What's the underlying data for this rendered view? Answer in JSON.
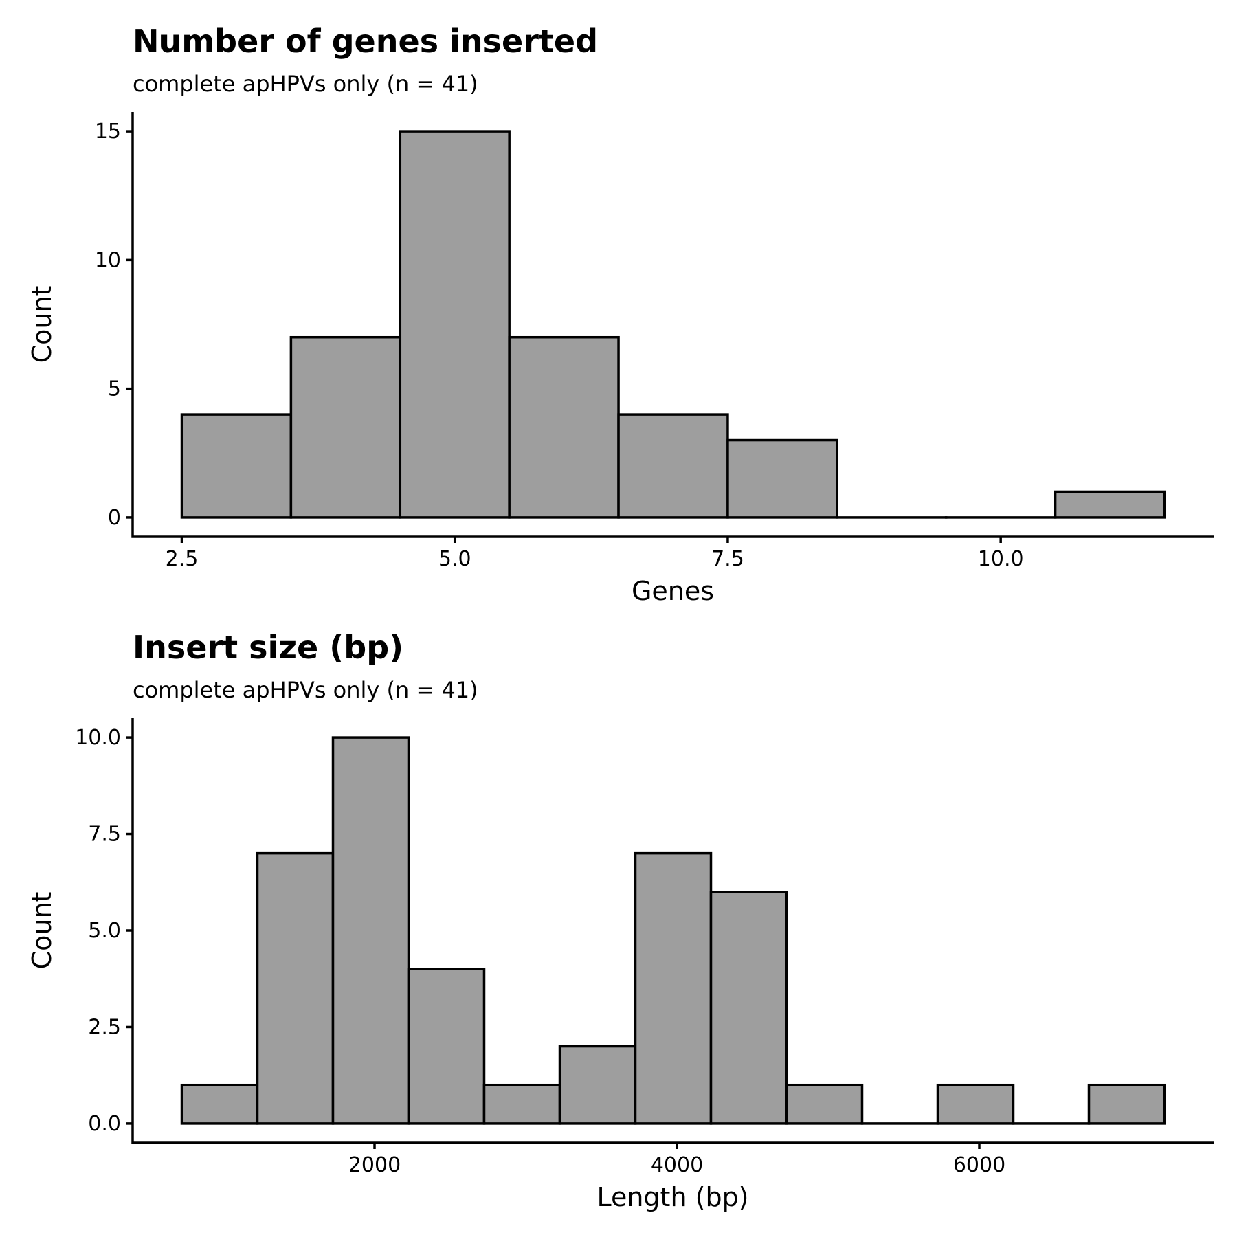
{
  "chart_data": [
    {
      "type": "bar",
      "title": "Number of genes inserted",
      "subtitle": "complete apHPVs only (n = 41)",
      "xlabel": "Genes",
      "ylabel": "Count",
      "bins": [
        {
          "x0": 2.5,
          "x1": 3.5,
          "count": 4
        },
        {
          "x0": 3.5,
          "x1": 4.5,
          "count": 7
        },
        {
          "x0": 4.5,
          "x1": 5.5,
          "count": 15
        },
        {
          "x0": 5.5,
          "x1": 6.5,
          "count": 7
        },
        {
          "x0": 6.5,
          "x1": 7.5,
          "count": 4
        },
        {
          "x0": 7.5,
          "x1": 8.5,
          "count": 3
        },
        {
          "x0": 8.5,
          "x1": 9.5,
          "count": 0
        },
        {
          "x0": 9.5,
          "x1": 10.5,
          "count": 0
        },
        {
          "x0": 10.5,
          "x1": 11.5,
          "count": 1
        }
      ],
      "xlim": [
        2.05,
        11.95
      ],
      "ylim": [
        -0.75,
        15.75
      ],
      "xticks": [
        {
          "v": 2.5,
          "label": "2.5"
        },
        {
          "v": 5.0,
          "label": "5.0"
        },
        {
          "v": 7.5,
          "label": "7.5"
        },
        {
          "v": 10.0,
          "label": "10.0"
        }
      ],
      "yticks": [
        {
          "v": 0,
          "label": "0"
        },
        {
          "v": 5,
          "label": "5"
        },
        {
          "v": 10,
          "label": "10"
        },
        {
          "v": 15,
          "label": "15"
        }
      ],
      "grid": false,
      "bar_color": "#9e9e9e",
      "outline_color": "#000000"
    },
    {
      "type": "bar",
      "title": "Insert size (bp)",
      "subtitle": "complete apHPVs only (n = 41)",
      "xlabel": "Length (bp)",
      "ylabel": "Count",
      "bins": [
        {
          "x0": 725,
          "x1": 1225,
          "count": 1
        },
        {
          "x0": 1225,
          "x1": 1725,
          "count": 7
        },
        {
          "x0": 1725,
          "x1": 2225,
          "count": 10
        },
        {
          "x0": 2225,
          "x1": 2725,
          "count": 4
        },
        {
          "x0": 2725,
          "x1": 3225,
          "count": 1
        },
        {
          "x0": 3225,
          "x1": 3725,
          "count": 2
        },
        {
          "x0": 3725,
          "x1": 4225,
          "count": 7
        },
        {
          "x0": 4225,
          "x1": 4725,
          "count": 6
        },
        {
          "x0": 4725,
          "x1": 5225,
          "count": 1
        },
        {
          "x0": 5225,
          "x1": 5725,
          "count": 0
        },
        {
          "x0": 5725,
          "x1": 6225,
          "count": 1
        },
        {
          "x0": 6225,
          "x1": 6725,
          "count": 0
        },
        {
          "x0": 6725,
          "x1": 7225,
          "count": 1
        }
      ],
      "xlim": [
        400,
        7550
      ],
      "ylim": [
        -0.5,
        10.5
      ],
      "xticks": [
        {
          "v": 2000,
          "label": "2000"
        },
        {
          "v": 4000,
          "label": "4000"
        },
        {
          "v": 6000,
          "label": "6000"
        }
      ],
      "yticks": [
        {
          "v": 0,
          "label": "0.0"
        },
        {
          "v": 2.5,
          "label": "2.5"
        },
        {
          "v": 5,
          "label": "5.0"
        },
        {
          "v": 7.5,
          "label": "7.5"
        },
        {
          "v": 10,
          "label": "10.0"
        }
      ],
      "grid": false,
      "bar_color": "#9e9e9e",
      "outline_color": "#000000"
    }
  ]
}
